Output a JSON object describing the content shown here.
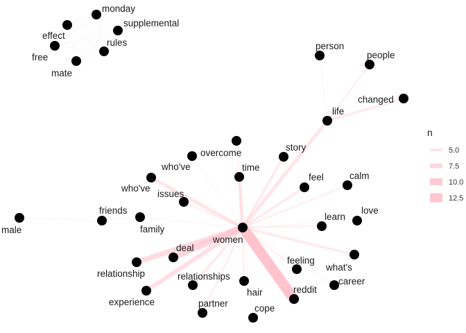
{
  "graph": {
    "nodes": [
      {
        "id": "monday",
        "label": "monday"
      },
      {
        "id": "supplemental",
        "label": "supplemental"
      },
      {
        "id": "effect",
        "label": "effect"
      },
      {
        "id": "rules",
        "label": "rules"
      },
      {
        "id": "free",
        "label": "free"
      },
      {
        "id": "mate",
        "label": "mate"
      },
      {
        "id": "person",
        "label": "person"
      },
      {
        "id": "people",
        "label": "people"
      },
      {
        "id": "changed",
        "label": "changed"
      },
      {
        "id": "life",
        "label": "life"
      },
      {
        "id": "overcome",
        "label": "overcome"
      },
      {
        "id": "story",
        "label": "story"
      },
      {
        "id": "whove1",
        "label": "who've"
      },
      {
        "id": "time",
        "label": "time"
      },
      {
        "id": "whove2",
        "label": "who've"
      },
      {
        "id": "feel",
        "label": "feel"
      },
      {
        "id": "calm",
        "label": "calm"
      },
      {
        "id": "issues",
        "label": "issues"
      },
      {
        "id": "friends",
        "label": "friends"
      },
      {
        "id": "family",
        "label": "family"
      },
      {
        "id": "male",
        "label": "male"
      },
      {
        "id": "learn",
        "label": "learn"
      },
      {
        "id": "love",
        "label": "love"
      },
      {
        "id": "women",
        "label": "women"
      },
      {
        "id": "deal",
        "label": "deal"
      },
      {
        "id": "relationship",
        "label": "relationship"
      },
      {
        "id": "feeling",
        "label": "feeling"
      },
      {
        "id": "whats",
        "label": "what's"
      },
      {
        "id": "experience",
        "label": "experience"
      },
      {
        "id": "relationships",
        "label": "relationships"
      },
      {
        "id": "hair",
        "label": "hair"
      },
      {
        "id": "reddit",
        "label": "reddit"
      },
      {
        "id": "career",
        "label": "career"
      },
      {
        "id": "partner",
        "label": "partner"
      },
      {
        "id": "cope",
        "label": "cope"
      }
    ],
    "edges": [
      {
        "from": "women",
        "to": "reddit",
        "n": 14
      },
      {
        "from": "women",
        "to": "deal",
        "n": 9
      },
      {
        "from": "women",
        "to": "relationship",
        "n": 8
      },
      {
        "from": "women",
        "to": "experience",
        "n": 7
      },
      {
        "from": "women",
        "to": "life",
        "n": 6
      },
      {
        "from": "women",
        "to": "time",
        "n": 6
      },
      {
        "from": "women",
        "to": "whove2",
        "n": 6
      },
      {
        "from": "women",
        "to": "relationships",
        "n": 5
      },
      {
        "from": "women",
        "to": "story",
        "n": 5
      },
      {
        "from": "women",
        "to": "feel",
        "n": 5
      },
      {
        "from": "women",
        "to": "whats",
        "n": 5
      },
      {
        "from": "women",
        "to": "calm",
        "n": 4
      },
      {
        "from": "women",
        "to": "learn",
        "n": 4
      },
      {
        "from": "women",
        "to": "partner",
        "n": 4
      },
      {
        "from": "women",
        "to": "hair",
        "n": 4
      },
      {
        "from": "women",
        "to": "issues",
        "n": 4
      },
      {
        "from": "women",
        "to": "feeling",
        "n": 4
      },
      {
        "from": "women",
        "to": "career",
        "n": 3
      },
      {
        "from": "women",
        "to": "cope",
        "n": 3
      },
      {
        "from": "women",
        "to": "overcome",
        "n": 3
      },
      {
        "from": "women",
        "to": "whove1",
        "n": 3
      },
      {
        "from": "women",
        "to": "family",
        "n": 3
      },
      {
        "from": "women",
        "to": "love",
        "n": 3
      },
      {
        "from": "life",
        "to": "changed",
        "n": 5
      },
      {
        "from": "life",
        "to": "people",
        "n": 4
      },
      {
        "from": "life",
        "to": "person",
        "n": 3
      },
      {
        "from": "friends",
        "to": "family",
        "n": 3
      },
      {
        "from": "friends",
        "to": "male",
        "n": 3
      },
      {
        "from": "overcome",
        "to": "time",
        "n": 3
      },
      {
        "from": "effect",
        "to": "supplemental",
        "n": 3
      },
      {
        "from": "effect",
        "to": "monday",
        "n": 3
      },
      {
        "from": "effect",
        "to": "rules",
        "n": 3
      },
      {
        "from": "effect",
        "to": "mate",
        "n": 3
      },
      {
        "from": "free",
        "to": "monday",
        "n": 3
      },
      {
        "from": "free",
        "to": "rules",
        "n": 3
      },
      {
        "from": "mate",
        "to": "supplemental",
        "n": 3
      },
      {
        "from": "monday",
        "to": "rules",
        "n": 3
      },
      {
        "from": "free",
        "to": "supplemental",
        "n": 3
      },
      {
        "from": "mate",
        "to": "rules",
        "n": 3
      }
    ],
    "edge_color": "#ffc0cb",
    "node_color": "#000000"
  },
  "legend": {
    "title": "n",
    "items": [
      {
        "value": 5.0,
        "label": "5.0"
      },
      {
        "value": 7.5,
        "label": "7.5"
      },
      {
        "value": 10.0,
        "label": "10.0"
      },
      {
        "value": 12.5,
        "label": "12.5"
      }
    ]
  }
}
